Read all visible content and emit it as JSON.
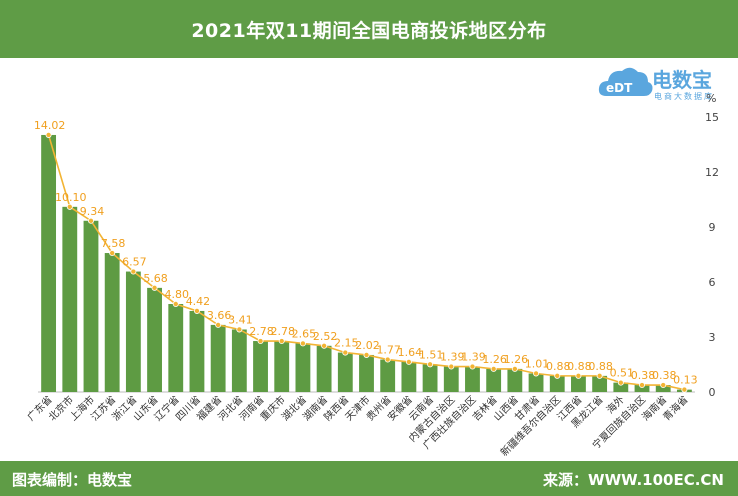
{
  "header": {
    "title": "2021年双11期间全国电商投诉地区分布"
  },
  "footer": {
    "left_text": "图表编制：电数宝",
    "right_text": "来源：WWW.100EC.CN"
  },
  "logo": {
    "brand": "电数宝",
    "tagline": "电商大数据库"
  },
  "colors": {
    "header_bg": "#5f9c46",
    "bar": "#5e9b43",
    "line": "#f2b434",
    "label": "#f0a020"
  },
  "chart_data": {
    "type": "bar",
    "unit": "%",
    "categories": [
      "广东省",
      "北京市",
      "上海市",
      "江苏省",
      "浙江省",
      "山东省",
      "辽宁省",
      "四川省",
      "福建省",
      "河北省",
      "河南省",
      "重庆市",
      "湖北省",
      "湖南省",
      "陕西省",
      "天津市",
      "贵州省",
      "安徽省",
      "云南省",
      "内蒙古自治区",
      "广西壮族自治区",
      "吉林省",
      "山西省",
      "甘肃省",
      "新疆维吾尔自治区",
      "江西省",
      "黑龙江省",
      "海外",
      "宁夏回族自治区",
      "海南省",
      "青海省"
    ],
    "values": [
      14.02,
      10.1,
      9.34,
      7.58,
      6.57,
      5.68,
      4.8,
      4.42,
      3.66,
      3.41,
      2.78,
      2.78,
      2.65,
      2.52,
      2.15,
      2.02,
      1.77,
      1.64,
      1.51,
      1.39,
      1.39,
      1.26,
      1.26,
      1.01,
      0.88,
      0.88,
      0.88,
      0.51,
      0.38,
      0.38,
      0.13
    ],
    "data_labels": [
      "14.02",
      "10.10",
      "9.34",
      "7.58",
      "6.57",
      "5.68",
      "4.80",
      "4.42",
      "3.66",
      "3.41",
      "2.78",
      "2.78",
      "2.65",
      "2.52",
      "2.15",
      "2.02",
      "1.77",
      "1.64",
      "1.51",
      "1.39",
      "1.39",
      "1.26",
      "1.26",
      "1.01",
      "0.88",
      "0.88",
      "0.88",
      "0.51",
      "0.38",
      "0.38",
      "0.13"
    ],
    "y_ticks": [
      "0",
      "3",
      "6",
      "9",
      "12",
      "15"
    ],
    "ylim": [
      0,
      15
    ],
    "overlay": "line",
    "grid": false,
    "y_axis_side": "right"
  }
}
